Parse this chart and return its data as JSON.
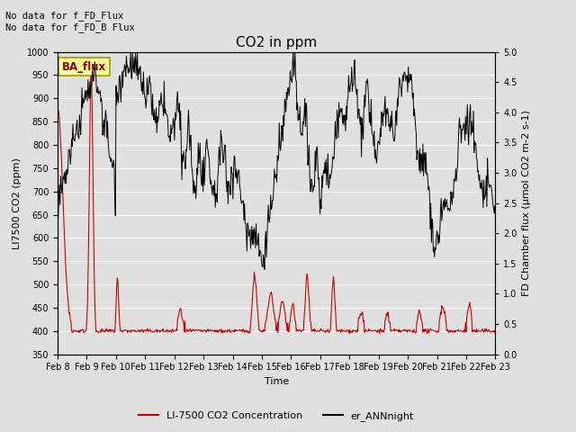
{
  "title": "CO2 in ppm",
  "xlabel": "Time",
  "ylabel_left": "LI7500 CO2 (ppm)",
  "ylabel_right": "FD Chamber flux (μmol CO2 m-2 s-1)",
  "text_upper_left_line1": "No data for f_FD_Flux",
  "text_upper_left_line2": "No data for f_FD_B Flux",
  "legend_label_red": "LI-7500 CO2 Concentration",
  "legend_label_black": "er_ANNnight",
  "ba_flux_label": "BA_flux",
  "ylim_left": [
    350,
    1000
  ],
  "ylim_right": [
    0.0,
    5.0
  ],
  "yticks_left": [
    350,
    400,
    450,
    500,
    550,
    600,
    650,
    700,
    750,
    800,
    850,
    900,
    950,
    1000
  ],
  "yticks_right": [
    0.0,
    0.5,
    1.0,
    1.5,
    2.0,
    2.5,
    3.0,
    3.5,
    4.0,
    4.5,
    5.0
  ],
  "x_tick_labels": [
    "Feb 8",
    "Feb 9",
    "Feb 10",
    "Feb 11",
    "Feb 12",
    "Feb 13",
    "Feb 14",
    "Feb 15",
    "Feb 16",
    "Feb 17",
    "Feb 18",
    "Feb 19",
    "Feb 20",
    "Feb 21",
    "Feb 22",
    "Feb 23"
  ],
  "background_color": "#e0e0e0",
  "red_color": "#cc0000",
  "black_color": "#000000",
  "grid_color": "#ffffff",
  "title_fontsize": 11,
  "label_fontsize": 8,
  "tick_fontsize": 7
}
